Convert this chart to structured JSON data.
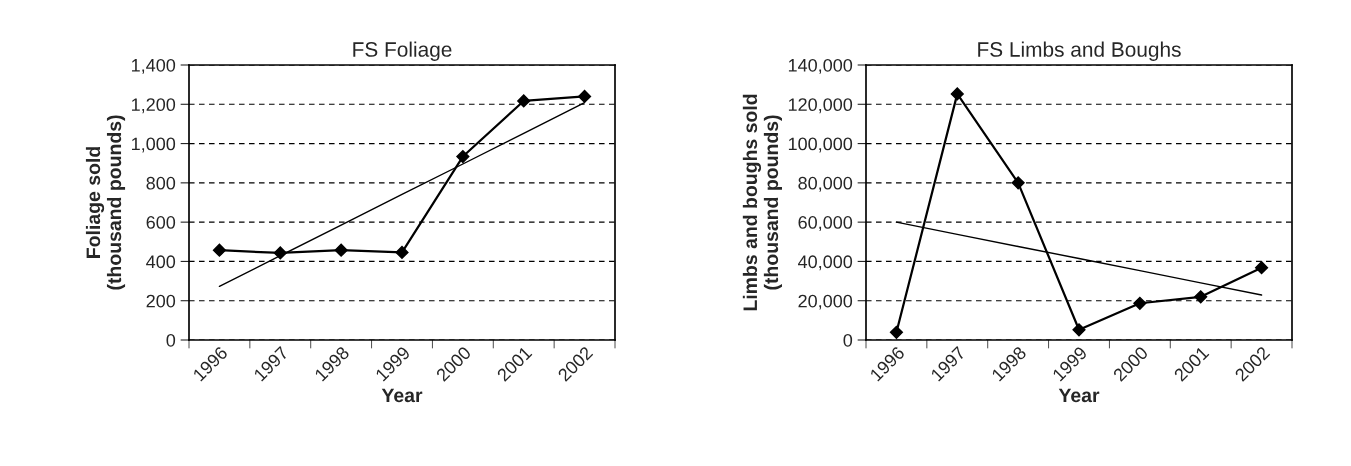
{
  "chart_data": [
    {
      "type": "line",
      "title": "FS Foliage",
      "xlabel": "Year",
      "ylabel": "Foliage sold\n(thousand pounds)",
      "categories": [
        "1996",
        "1997",
        "1998",
        "1999",
        "2000",
        "2001",
        "2002"
      ],
      "ylim": [
        0,
        1400
      ],
      "yticks": [
        {
          "value": 0,
          "label": "0"
        },
        {
          "value": 200,
          "label": "200"
        },
        {
          "value": 400,
          "label": "400"
        },
        {
          "value": 600,
          "label": "600"
        },
        {
          "value": 800,
          "label": "800"
        },
        {
          "value": 1000,
          "label": "1,000"
        },
        {
          "value": 1200,
          "label": "1,200"
        },
        {
          "value": 1400,
          "label": "1,400"
        }
      ],
      "grid": "y",
      "legend": false,
      "series": [
        {
          "color": "#000000",
          "marker": "diamond",
          "values": [
            457,
            443,
            457,
            446,
            934,
            1217,
            1240
          ]
        },
        {
          "type": "line",
          "color": "#000000",
          "marker": "none",
          "values": [
            273,
            429,
            585,
            741,
            896,
            1052,
            1208
          ]
        }
      ]
    },
    {
      "type": "line",
      "title": "FS Limbs and Boughs",
      "xlabel": "Year",
      "ylabel": "Limbs and boughs sold\n(thousand pounds)",
      "categories": [
        "1996",
        "1997",
        "1998",
        "1999",
        "2000",
        "2001",
        "2002"
      ],
      "ylim": [
        0,
        140000
      ],
      "yticks": [
        {
          "value": 0,
          "label": "0"
        },
        {
          "value": 20000,
          "label": "20,000"
        },
        {
          "value": 40000,
          "label": "40,000"
        },
        {
          "value": 60000,
          "label": "60,000"
        },
        {
          "value": 80000,
          "label": "80,000"
        },
        {
          "value": 100000,
          "label": "100,000"
        },
        {
          "value": 120000,
          "label": "120,000"
        },
        {
          "value": 140000,
          "label": "140,000"
        }
      ],
      "grid": "y",
      "legend": false,
      "series": [
        {
          "color": "#000000",
          "marker": "diamond",
          "values": [
            3900,
            125300,
            80000,
            5200,
            18700,
            22000,
            36800
          ]
        },
        {
          "type": "line",
          "color": "#000000",
          "marker": "none",
          "values": [
            60000,
            53800,
            47600,
            41500,
            35300,
            29100,
            22900
          ]
        }
      ]
    }
  ]
}
